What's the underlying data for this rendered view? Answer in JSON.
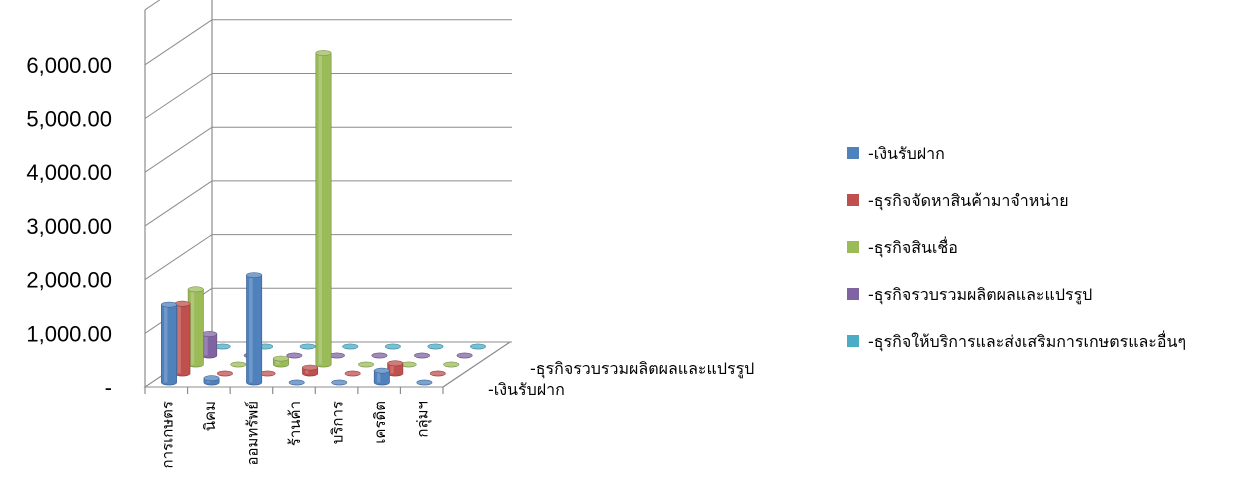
{
  "chart_data": {
    "type": "bar",
    "subtype": "3d-column",
    "title": "",
    "xlabel": "",
    "ylabel": "",
    "ylim": [
      0,
      6000
    ],
    "yticks": [
      {
        "value": 0,
        "label": "-"
      },
      {
        "value": 1000,
        "label": "1,000.00"
      },
      {
        "value": 2000,
        "label": "2,000.00"
      },
      {
        "value": 3000,
        "label": "3,000.00"
      },
      {
        "value": 4000,
        "label": "4,000.00"
      },
      {
        "value": 5000,
        "label": "5,000.00"
      },
      {
        "value": 6000,
        "label": "6,000.00"
      }
    ],
    "categories": [
      "การเกษตร",
      "นิคม",
      "ออมทรัพย์",
      "ร้านค้า",
      "บริการ",
      "เครดิต",
      "กลุ่มฯ"
    ],
    "depth_axis_labels": [
      "-ธุรกิจรวบรวมผลิตผลและแปรรูป",
      "-เงินรับฝาก"
    ],
    "legend_position": "right",
    "grid": true,
    "series": [
      {
        "name": "-เงินรับฝาก",
        "color": "#4f81bd",
        "values": [
          1450,
          80,
          2000,
          0,
          0,
          220,
          0
        ]
      },
      {
        "name": "-ธุรกิจจัดหาสินค้ามาจำหน่าย",
        "color": "#c0504d",
        "values": [
          1300,
          0,
          0,
          110,
          0,
          190,
          0
        ]
      },
      {
        "name": "-ธุรกิจสินเชื่อ",
        "color": "#9bbb59",
        "values": [
          1400,
          0,
          110,
          5800,
          0,
          0,
          0
        ]
      },
      {
        "name": "-ธุรกิจรวบรวมผลิตผลและแปรรูป",
        "color": "#8064a2",
        "values": [
          400,
          0,
          0,
          0,
          0,
          0,
          0
        ]
      },
      {
        "name": "-ธุรกิจให้บริการและส่งเสริมการเกษตรและอื่นๆ",
        "color": "#4bacc6",
        "values": [
          0,
          0,
          0,
          0,
          0,
          0,
          0
        ]
      }
    ]
  }
}
